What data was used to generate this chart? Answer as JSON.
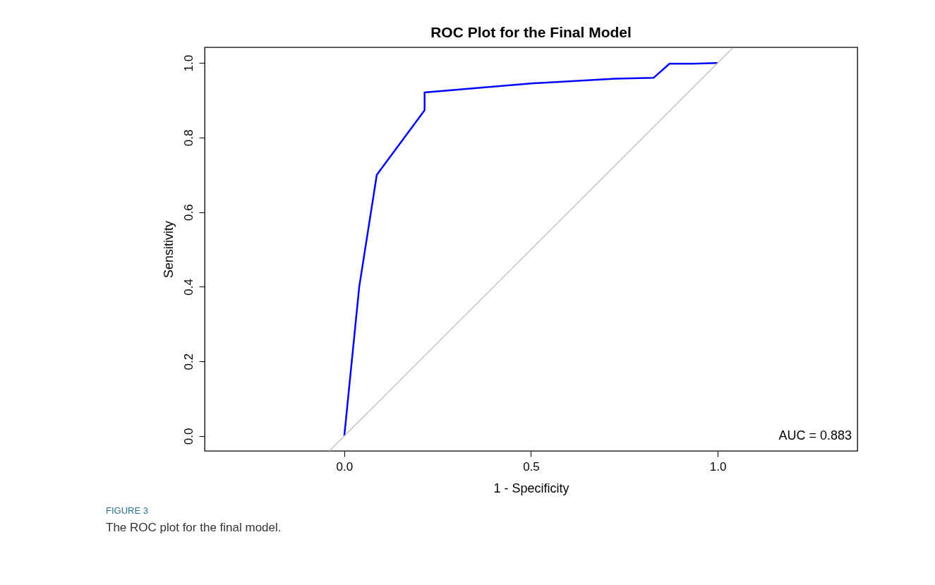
{
  "chart_data": {
    "type": "line",
    "title": "ROC Plot for the Final Model",
    "xlabel": "1 - Specificity",
    "ylabel": "Sensitivity",
    "series": [
      {
        "color": "#0000ff",
        "x": [
          0,
          0.04,
          0.087,
          0.215,
          0.215,
          0.5,
          0.726,
          0.828,
          0.871,
          0.934,
          1.0
        ],
        "values": [
          0,
          0.4,
          0.7,
          0.873,
          0.921,
          0.945,
          0.958,
          0.96,
          0.998,
          0.998,
          1.0
        ]
      },
      {
        "color": "#c0c0c0",
        "x": [
          -0.04,
          1.04
        ],
        "values": [
          -0.04,
          1.04
        ]
      }
    ],
    "xlim": [
      -0.374,
      1.374
    ],
    "ylim": [
      -0.04,
      1.042
    ],
    "xticks": [
      {
        "value": 0,
        "label": "0.0"
      },
      {
        "value": 0.5,
        "label": "0.5"
      },
      {
        "value": 1,
        "label": "1.0"
      }
    ],
    "yticks": [
      {
        "value": 0,
        "label": "0.0"
      },
      {
        "value": 0.2,
        "label": "0.2"
      },
      {
        "value": 0.4,
        "label": "0.4"
      },
      {
        "value": 0.6,
        "label": "0.6"
      },
      {
        "value": 0.8,
        "label": "0.8"
      },
      {
        "value": 1,
        "label": "1.0"
      }
    ],
    "grid": false,
    "marker": "none",
    "line_style": "solid",
    "annotations": [
      "AUC = 0.883",
      "FIGURE 3",
      "The ROC plot for the final model."
    ]
  }
}
